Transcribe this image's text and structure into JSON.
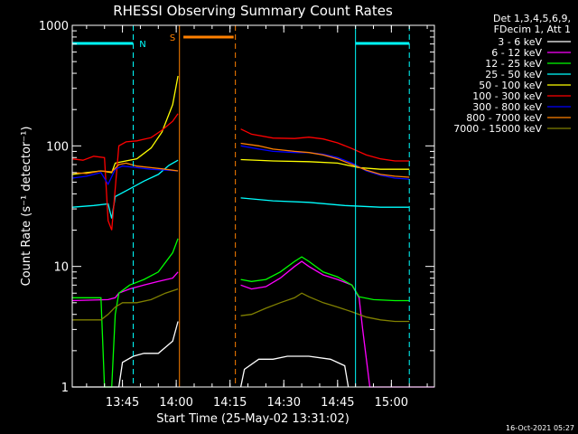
{
  "chart_data": {
    "type": "line",
    "title": "RHESSI Observing Summary Count Rates",
    "xlabel": "Start Time (25-May-02 13:31:02)",
    "ylabel": "Count Rate (s⁻¹ detector⁻¹)",
    "y_scale": "log",
    "ylim": [
      1,
      1000
    ],
    "xlim_minutes_after_13_31": [
      0,
      101
    ],
    "x_ticks": [
      {
        "t": 14,
        "label": "13:45"
      },
      {
        "t": 29,
        "label": "14:00"
      },
      {
        "t": 44,
        "label": "14:15"
      },
      {
        "t": 59,
        "label": "14:30"
      },
      {
        "t": 74,
        "label": "14:45"
      },
      {
        "t": 89,
        "label": "15:00"
      }
    ],
    "y_ticks": [
      {
        "v": 1,
        "label": "1"
      },
      {
        "v": 10,
        "label": "10"
      },
      {
        "v": 100,
        "label": "100"
      },
      {
        "v": 1000,
        "label": "1000"
      }
    ],
    "legend_header": [
      "Det 1,3,4,5,6,9,",
      "FDecim 1, Att 1"
    ],
    "legend_position": "right",
    "series": [
      {
        "name": "3 - 6 keV",
        "color": "#ffffff",
        "points": [
          [
            0,
            1
          ],
          [
            13,
            1
          ],
          [
            14,
            1.6
          ],
          [
            17,
            1.8
          ],
          [
            20,
            1.9
          ],
          [
            24,
            1.9
          ],
          [
            28,
            2.4
          ],
          [
            29.5,
            3.5
          ],
          [
            47,
            1
          ],
          [
            48,
            1.4
          ],
          [
            52,
            1.7
          ],
          [
            56,
            1.7
          ],
          [
            60,
            1.8
          ],
          [
            66,
            1.8
          ],
          [
            72,
            1.7
          ],
          [
            76,
            1.5
          ],
          [
            77,
            1
          ]
        ]
      },
      {
        "name": "6 - 12 keV",
        "color": "#ff00ff",
        "points": [
          [
            0,
            5.2
          ],
          [
            10,
            5.3
          ],
          [
            12,
            5.5
          ],
          [
            13,
            6
          ],
          [
            16,
            6.5
          ],
          [
            20,
            7
          ],
          [
            24,
            7.5
          ],
          [
            28,
            8
          ],
          [
            29.5,
            9
          ],
          [
            47,
            7
          ],
          [
            50,
            6.5
          ],
          [
            54,
            6.8
          ],
          [
            58,
            8
          ],
          [
            62,
            10
          ],
          [
            64,
            11
          ],
          [
            66,
            10
          ],
          [
            70,
            8.5
          ],
          [
            74,
            7.8
          ],
          [
            78,
            7
          ],
          [
            80,
            5.5
          ],
          [
            81,
            3
          ],
          [
            83,
            1
          ],
          [
            101,
            1
          ]
        ]
      },
      {
        "name": "12 - 25 keV",
        "color": "#00ff00",
        "points": [
          [
            0,
            5.5
          ],
          [
            8,
            5.5
          ],
          [
            9,
            1
          ],
          [
            11,
            1
          ],
          [
            12,
            4
          ],
          [
            13,
            6
          ],
          [
            16,
            7
          ],
          [
            20,
            7.8
          ],
          [
            24,
            9
          ],
          [
            28,
            13
          ],
          [
            29.5,
            17
          ],
          [
            47,
            7.8
          ],
          [
            50,
            7.5
          ],
          [
            54,
            7.8
          ],
          [
            58,
            9
          ],
          [
            62,
            11
          ],
          [
            64,
            12
          ],
          [
            66,
            11
          ],
          [
            70,
            9
          ],
          [
            74,
            8.2
          ],
          [
            78,
            7
          ],
          [
            80,
            5.6
          ],
          [
            84,
            5.3
          ],
          [
            90,
            5.2
          ],
          [
            94,
            5.2
          ]
        ]
      },
      {
        "name": "25 - 50 keV",
        "color": "#00ffff",
        "points": [
          [
            0,
            31
          ],
          [
            6,
            32
          ],
          [
            10,
            33
          ],
          [
            11,
            25
          ],
          [
            12,
            38
          ],
          [
            16,
            44
          ],
          [
            20,
            51
          ],
          [
            24,
            58
          ],
          [
            27,
            69
          ],
          [
            29.5,
            76
          ],
          [
            47,
            37
          ],
          [
            56,
            35
          ],
          [
            66,
            34
          ],
          [
            76,
            32
          ],
          [
            86,
            31
          ],
          [
            94,
            31
          ]
        ]
      },
      {
        "name": "50 - 100 keV",
        "color": "#ffff00",
        "points": [
          [
            0,
            58
          ],
          [
            4,
            60
          ],
          [
            8,
            62
          ],
          [
            11,
            60
          ],
          [
            12,
            72
          ],
          [
            14,
            74
          ],
          [
            18,
            78
          ],
          [
            22,
            96
          ],
          [
            25,
            130
          ],
          [
            28,
            220
          ],
          [
            29.5,
            380
          ],
          [
            47,
            77
          ],
          [
            56,
            75
          ],
          [
            66,
            74
          ],
          [
            74,
            72
          ],
          [
            80,
            66
          ],
          [
            86,
            64
          ],
          [
            94,
            64
          ]
        ]
      },
      {
        "name": "100 - 300 keV",
        "color": "#ff0000",
        "points": [
          [
            0,
            78
          ],
          [
            3,
            76
          ],
          [
            6,
            82
          ],
          [
            9,
            80
          ],
          [
            10,
            24
          ],
          [
            11,
            20
          ],
          [
            13,
            100
          ],
          [
            15,
            108
          ],
          [
            18,
            110
          ],
          [
            22,
            117
          ],
          [
            25,
            135
          ],
          [
            28,
            160
          ],
          [
            29.5,
            185
          ],
          [
            47,
            138
          ],
          [
            50,
            125
          ],
          [
            56,
            116
          ],
          [
            62,
            115
          ],
          [
            66,
            118
          ],
          [
            70,
            114
          ],
          [
            74,
            106
          ],
          [
            78,
            95
          ],
          [
            82,
            84
          ],
          [
            86,
            78
          ],
          [
            90,
            75
          ],
          [
            94,
            75
          ]
        ]
      },
      {
        "name": "300 - 800 keV",
        "color": "#0000ff",
        "points": [
          [
            0,
            54
          ],
          [
            4,
            56
          ],
          [
            8,
            60
          ],
          [
            10,
            48
          ],
          [
            12,
            64
          ],
          [
            14,
            68
          ],
          [
            18,
            66
          ],
          [
            22,
            64
          ],
          [
            26,
            63
          ],
          [
            29.5,
            62
          ],
          [
            47,
            100
          ],
          [
            52,
            94
          ],
          [
            56,
            90
          ],
          [
            62,
            88
          ],
          [
            66,
            88
          ],
          [
            70,
            85
          ],
          [
            74,
            80
          ],
          [
            78,
            72
          ],
          [
            82,
            62
          ],
          [
            86,
            57
          ],
          [
            90,
            54
          ],
          [
            94,
            53
          ]
        ]
      },
      {
        "name": "800 - 7000 keV",
        "color": "#ff8000",
        "points": [
          [
            0,
            60
          ],
          [
            4,
            59
          ],
          [
            8,
            62
          ],
          [
            11,
            61
          ],
          [
            13,
            70
          ],
          [
            15,
            72
          ],
          [
            18,
            68
          ],
          [
            22,
            66
          ],
          [
            26,
            64
          ],
          [
            29.5,
            62
          ],
          [
            47,
            105
          ],
          [
            52,
            100
          ],
          [
            56,
            94
          ],
          [
            62,
            90
          ],
          [
            66,
            88
          ],
          [
            70,
            84
          ],
          [
            74,
            78
          ],
          [
            78,
            70
          ],
          [
            82,
            63
          ],
          [
            86,
            58
          ],
          [
            90,
            56
          ],
          [
            94,
            55
          ]
        ]
      },
      {
        "name": "7000 - 15000 keV",
        "color": "#808000",
        "points": [
          [
            0,
            3.6
          ],
          [
            8,
            3.6
          ],
          [
            10,
            4
          ],
          [
            12,
            4.6
          ],
          [
            14,
            5
          ],
          [
            18,
            5
          ],
          [
            22,
            5.3
          ],
          [
            26,
            6
          ],
          [
            29.5,
            6.5
          ],
          [
            47,
            3.9
          ],
          [
            50,
            4
          ],
          [
            54,
            4.5
          ],
          [
            58,
            5
          ],
          [
            62,
            5.5
          ],
          [
            64,
            6
          ],
          [
            66,
            5.6
          ],
          [
            70,
            5
          ],
          [
            74,
            4.6
          ],
          [
            78,
            4.2
          ],
          [
            82,
            3.8
          ],
          [
            86,
            3.6
          ],
          [
            90,
            3.5
          ],
          [
            94,
            3.5
          ]
        ]
      }
    ],
    "annotations": {
      "gap_start_t": 29.9,
      "gap_end_t": 46.8,
      "saa_label": "S",
      "night_label": "N",
      "cyan_bars": [
        [
          0,
          17
        ],
        [
          79,
          94
        ]
      ],
      "cyan_dashes": [
        17,
        94
      ],
      "cyan_solid": [
        0,
        79
      ],
      "orange_bar": [
        31,
        45
      ],
      "orange_dashes": [
        45.5
      ],
      "orange_solid": [
        29.9
      ]
    },
    "timestamp": "16-Oct-2021 05:27"
  }
}
